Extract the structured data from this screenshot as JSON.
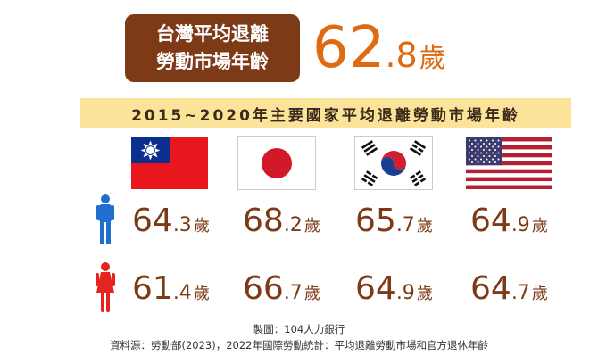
{
  "header": {
    "line1": "台灣平均退離",
    "line2": "勞動市場年齡",
    "value_int": "62",
    "value_dec": ".8",
    "value_unit": "歲"
  },
  "subtitle": "2015~2020年主要國家平均退離勞動市場年齡",
  "countries": [
    {
      "flag": "taiwan-flag",
      "male": {
        "int": "64",
        "dec": ".3",
        "unit": "歲"
      },
      "female": {
        "int": "61",
        "dec": ".4",
        "unit": "歲"
      }
    },
    {
      "flag": "japan-flag",
      "male": {
        "int": "68",
        "dec": ".2",
        "unit": "歲"
      },
      "female": {
        "int": "66",
        "dec": ".7",
        "unit": "歲"
      }
    },
    {
      "flag": "korea-flag",
      "male": {
        "int": "65",
        "dec": ".7",
        "unit": "歲"
      },
      "female": {
        "int": "64",
        "dec": ".9",
        "unit": "歲"
      }
    },
    {
      "flag": "usa-flag",
      "male": {
        "int": "64",
        "dec": ".9",
        "unit": "歲"
      },
      "female": {
        "int": "64",
        "dec": ".7",
        "unit": "歲"
      }
    }
  ],
  "icons": {
    "male": "male-person-icon",
    "female": "female-person-icon"
  },
  "colors": {
    "header_bg": "#7d3a17",
    "highlight": "#e06a10",
    "subtitle_bg": "#fbe49a",
    "male": "#1f6fd1",
    "female": "#e5231f"
  },
  "credits": {
    "made_by": "製圖：104人力銀行",
    "source": "資料源：勞動部(2023)，2022年國際勞動統計：平均退離勞動市場和官方退休年齡"
  }
}
